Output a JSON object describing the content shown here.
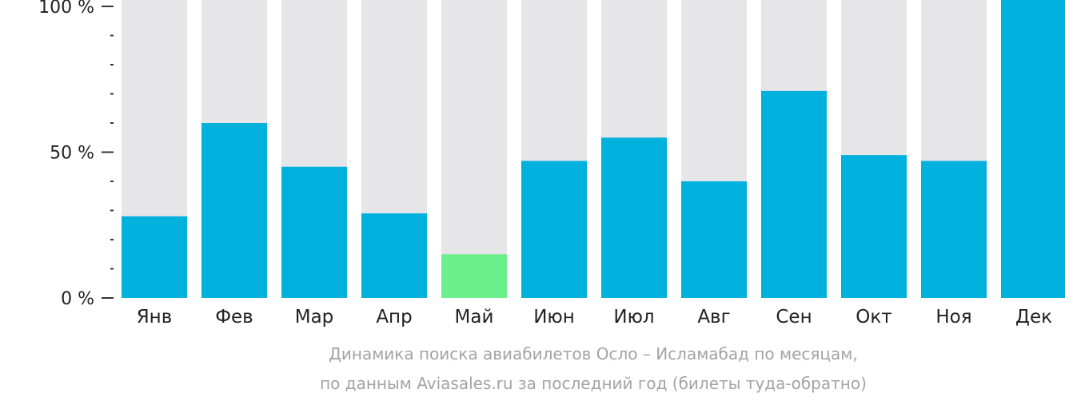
{
  "chart_data": {
    "type": "bar",
    "categories": [
      "Янв",
      "Фев",
      "Мар",
      "Апр",
      "Май",
      "Июн",
      "Июл",
      "Авг",
      "Сен",
      "Окт",
      "Ноя",
      "Дек"
    ],
    "values": [
      28,
      60,
      45,
      29,
      15,
      47,
      55,
      40,
      71,
      49,
      47,
      100
    ],
    "highlight_index": 4,
    "ylim": [
      0,
      100
    ],
    "y_ticks": [
      {
        "value": 0,
        "label": "0 %"
      },
      {
        "value": 50,
        "label": "50 %"
      },
      {
        "value": 100,
        "label": "100 %"
      }
    ],
    "y_minor_step": 10,
    "title": "",
    "xlabel": "",
    "ylabel": "",
    "grid": false,
    "colors": {
      "bar": "#00b0dd",
      "highlight": "#6bef8a",
      "track": "#e6e6e8",
      "axis": "#333333",
      "caption": "#a3a3a3"
    }
  },
  "caption": {
    "line1": "Динамика поиска авиабилетов Осло – Исламабад по месяцам,",
    "line2": "по данным Aviasales.ru за последний год (билеты туда-обратно)"
  }
}
